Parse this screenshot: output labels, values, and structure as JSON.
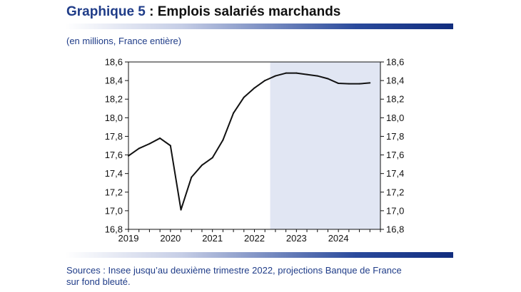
{
  "header": {
    "title_number": "Graphique 5",
    "title_separator": " : ",
    "title_text": "Emplois salariés marchands",
    "subtitle": "(en millions, France entière)"
  },
  "footer": {
    "sources_line1": "Sources : Insee jusqu’au deuxième trimestre 2022, projections Banque de France",
    "sources_line2": "sur fond bleuté."
  },
  "colors": {
    "accent": "#1f3c88",
    "projection_shade": "#e1e6f3",
    "line": "#111111"
  },
  "chart_data": {
    "type": "line",
    "title": "Emplois salariés marchands",
    "ylabel": "(en millions, France entière)",
    "ylim": [
      16.8,
      18.6
    ],
    "y_ticks": [
      "18,6",
      "18,4",
      "18,2",
      "18,0",
      "17,8",
      "17,6",
      "17,4",
      "17,2",
      "17,0",
      "16,8"
    ],
    "x_labels": [
      "2019",
      "2020",
      "2021",
      "2022",
      "2023",
      "2024"
    ],
    "grid": false,
    "legend": "none",
    "projection_shading": {
      "from": "2022-T3",
      "to": "2024-T4",
      "meaning": "projections Banque de France"
    },
    "series": [
      {
        "x": [
          "2019-T1",
          "2019-T2",
          "2019-T3",
          "2019-T4",
          "2020-T1",
          "2020-T2",
          "2020-T3",
          "2020-T4",
          "2021-T1",
          "2021-T2",
          "2021-T3",
          "2021-T4",
          "2022-T1",
          "2022-T2",
          "2022-T3",
          "2022-T4",
          "2023-T1",
          "2023-T2",
          "2023-T3",
          "2023-T4",
          "2024-T1",
          "2024-T2",
          "2024-T3",
          "2024-T4"
        ],
        "values": [
          17.59,
          17.67,
          17.72,
          17.78,
          17.7,
          17.01,
          17.36,
          17.49,
          17.57,
          17.76,
          18.05,
          18.22,
          18.32,
          18.4,
          18.45,
          18.48,
          18.48,
          18.465,
          18.45,
          18.42,
          18.37,
          18.365,
          18.365,
          18.375
        ]
      }
    ]
  }
}
